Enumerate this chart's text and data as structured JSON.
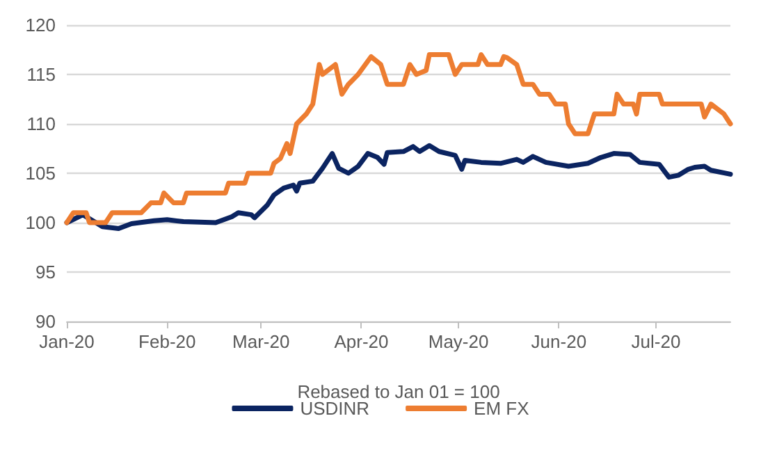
{
  "chart_data": {
    "type": "line",
    "xlabel": "Rebased to Jan 01 = 100",
    "xlim": [
      "2020-01-01",
      "2020-07-24"
    ],
    "xticks": [
      {
        "value": "2020-01-01",
        "label": "Jan-20"
      },
      {
        "value": "2020-02-01",
        "label": "Feb-20"
      },
      {
        "value": "2020-03-01",
        "label": "Mar-20"
      },
      {
        "value": "2020-04-01",
        "label": "Apr-20"
      },
      {
        "value": "2020-05-01",
        "label": "May-20"
      },
      {
        "value": "2020-06-01",
        "label": "Jun-20"
      },
      {
        "value": "2020-07-01",
        "label": "Jul-20"
      }
    ],
    "ylim": [
      90,
      120
    ],
    "yticks": [
      90,
      95,
      100,
      105,
      110,
      115,
      120
    ],
    "grid": "y",
    "legend": "bottom",
    "marker": "none",
    "line_style": "solid",
    "series": [
      {
        "name": "USDINR",
        "color": "#0b2461",
        "x": [
          "2020-01-01",
          "2020-01-06",
          "2020-01-10",
          "2020-01-12",
          "2020-01-17",
          "2020-01-21",
          "2020-01-28",
          "2020-02-01",
          "2020-02-06",
          "2020-02-16",
          "2020-02-21",
          "2020-02-23",
          "2020-02-27",
          "2020-02-28",
          "2020-03-03",
          "2020-03-05",
          "2020-03-08",
          "2020-03-11",
          "2020-03-12",
          "2020-03-13",
          "2020-03-17",
          "2020-03-20",
          "2020-03-23",
          "2020-03-25",
          "2020-03-28",
          "2020-03-31",
          "2020-04-03",
          "2020-04-06",
          "2020-04-08",
          "2020-04-09",
          "2020-04-14",
          "2020-04-17",
          "2020-04-19",
          "2020-04-22",
          "2020-04-25",
          "2020-04-30",
          "2020-05-02",
          "2020-05-03",
          "2020-05-08",
          "2020-05-14",
          "2020-05-19",
          "2020-05-21",
          "2020-05-24",
          "2020-05-28",
          "2020-06-04",
          "2020-06-10",
          "2020-06-14",
          "2020-06-18",
          "2020-06-23",
          "2020-06-26",
          "2020-07-02",
          "2020-07-05",
          "2020-07-08",
          "2020-07-11",
          "2020-07-13",
          "2020-07-16",
          "2020-07-18",
          "2020-07-24"
        ],
        "values": [
          100,
          100.8,
          100,
          99.6,
          99.4,
          99.9,
          100.2,
          100.3,
          100.1,
          100.0,
          100.6,
          101,
          100.8,
          100.5,
          101.8,
          102.8,
          103.5,
          103.8,
          103.2,
          104,
          104.2,
          105.5,
          107,
          105.5,
          105,
          105.7,
          107,
          106.6,
          105.9,
          107.1,
          107.2,
          107.7,
          107.2,
          107.8,
          107.2,
          106.8,
          105.4,
          106.3,
          106.1,
          106,
          106.4,
          106.1,
          106.7,
          106.1,
          105.7,
          106,
          106.6,
          107,
          106.9,
          106.1,
          105.9,
          104.6,
          104.8,
          105.4,
          105.6,
          105.7,
          105.3,
          104.9
        ]
      },
      {
        "name": "EM FX",
        "color": "#ed7d31",
        "x": [
          "2020-01-01",
          "2020-01-03",
          "2020-01-07",
          "2020-01-08",
          "2020-01-13",
          "2020-01-15",
          "2020-01-24",
          "2020-01-27",
          "2020-01-30",
          "2020-01-31",
          "2020-02-03",
          "2020-02-06",
          "2020-02-07",
          "2020-02-19",
          "2020-02-20",
          "2020-02-25",
          "2020-02-26",
          "2020-03-04",
          "2020-03-05",
          "2020-03-07",
          "2020-03-09",
          "2020-03-10",
          "2020-03-12",
          "2020-03-15",
          "2020-03-17",
          "2020-03-19",
          "2020-03-20",
          "2020-03-24",
          "2020-03-26",
          "2020-03-28",
          "2020-03-31",
          "2020-04-04",
          "2020-04-07",
          "2020-04-09",
          "2020-04-14",
          "2020-04-16",
          "2020-04-18",
          "2020-04-21",
          "2020-04-22",
          "2020-04-28",
          "2020-04-30",
          "2020-05-02",
          "2020-05-07",
          "2020-05-08",
          "2020-05-10",
          "2020-05-14",
          "2020-05-15",
          "2020-05-16",
          "2020-05-19",
          "2020-05-21",
          "2020-05-24",
          "2020-05-26",
          "2020-05-29",
          "2020-05-31",
          "2020-06-03",
          "2020-06-04",
          "2020-06-06",
          "2020-06-10",
          "2020-06-12",
          "2020-06-18",
          "2020-06-19",
          "2020-06-21",
          "2020-06-24",
          "2020-06-25",
          "2020-06-26",
          "2020-07-02",
          "2020-07-03",
          "2020-07-15",
          "2020-07-16",
          "2020-07-18",
          "2020-07-22",
          "2020-07-24"
        ],
        "values": [
          100,
          101,
          101,
          100,
          100,
          101,
          101,
          102,
          102,
          103,
          102,
          102,
          103,
          103,
          104,
          104,
          105,
          105,
          106,
          106.5,
          108,
          107,
          110,
          111,
          112,
          116,
          115,
          116,
          113,
          114,
          115,
          116.8,
          116,
          114,
          114,
          116,
          115,
          115.4,
          117,
          117,
          115,
          116,
          116,
          117,
          116,
          116,
          116.8,
          116.7,
          116,
          114,
          114,
          113,
          113,
          112,
          112,
          110,
          109,
          109,
          111,
          111,
          113,
          112,
          112,
          111,
          113,
          113,
          112,
          112,
          110.7,
          112,
          111,
          110
        ]
      }
    ]
  }
}
